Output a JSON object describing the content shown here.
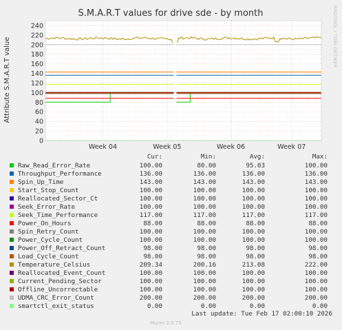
{
  "chart_data": {
    "type": "line",
    "title": "S.M.A.R.T values for drive sde - by month",
    "ylabel": "Attribute S.M.A.R.T value",
    "xlabel": "",
    "ylim": [
      0,
      250
    ],
    "yticks": [
      "0",
      "20",
      "40",
      "60",
      "80",
      "100",
      "120",
      "140",
      "160",
      "180",
      "200",
      "220",
      "240"
    ],
    "xticks": [
      {
        "label": "Week 04",
        "t": 0.248
      },
      {
        "label": "Week 05",
        "t": 0.481
      },
      {
        "label": "Week 06",
        "t": 0.712
      },
      {
        "label": "Week 07",
        "t": 0.932
      }
    ],
    "gap": [
      0.465,
      0.475
    ],
    "grid": true,
    "side_label": "RRDTOOL / TOBI OETIKER",
    "series": [
      {
        "name": "Raw_Read_Error_Rate",
        "color": "#00cc00",
        "cur": "100.00",
        "min": "80.00",
        "avg": "95.03",
        "max": "100.00",
        "segments": [
          [
            0.0,
            80
          ],
          [
            0.23,
            80
          ],
          [
            0.235,
            100
          ],
          [
            0.465,
            100
          ],
          [
            0.475,
            80
          ],
          [
            0.52,
            80
          ],
          [
            0.525,
            100
          ],
          [
            1.0,
            100
          ]
        ]
      },
      {
        "name": "Throughput_Performance",
        "color": "#0066b3",
        "cur": "136.00",
        "min": "136.00",
        "avg": "136.00",
        "max": "136.00",
        "constant": 136
      },
      {
        "name": "Spin_Up_Time",
        "color": "#ff8000",
        "cur": "143.00",
        "min": "143.00",
        "avg": "143.00",
        "max": "143.00",
        "constant": 143
      },
      {
        "name": "Start_Stop_Count",
        "color": "#ffcc00",
        "cur": "100.00",
        "min": "100.00",
        "avg": "100.00",
        "max": "100.00",
        "constant": 100
      },
      {
        "name": "Reallocated_Sector_Ct",
        "color": "#330099",
        "cur": "100.00",
        "min": "100.00",
        "avg": "100.00",
        "max": "100.00",
        "constant": 100
      },
      {
        "name": "Seek_Error_Rate",
        "color": "#990099",
        "cur": "100.00",
        "min": "100.00",
        "avg": "100.00",
        "max": "100.00",
        "constant": 100
      },
      {
        "name": "Seek_Time_Performance",
        "color": "#ccff00",
        "cur": "117.00",
        "min": "117.00",
        "avg": "117.00",
        "max": "117.00",
        "constant": 117
      },
      {
        "name": "Power_On_Hours",
        "color": "#ff0000",
        "cur": "88.00",
        "min": "88.00",
        "avg": "88.00",
        "max": "88.00",
        "constant": 88
      },
      {
        "name": "Spin_Retry_Count",
        "color": "#808080",
        "cur": "100.00",
        "min": "100.00",
        "avg": "100.00",
        "max": "100.00",
        "constant": 100
      },
      {
        "name": "Power_Cycle_Count",
        "color": "#008f00",
        "cur": "100.00",
        "min": "100.00",
        "avg": "100.00",
        "max": "100.00",
        "constant": 100
      },
      {
        "name": "Power_Off_Retract_Count",
        "color": "#00487d",
        "cur": "98.00",
        "min": "98.00",
        "avg": "98.00",
        "max": "98.00",
        "constant": 98
      },
      {
        "name": "Load_Cycle_Count",
        "color": "#b35a00",
        "cur": "98.00",
        "min": "98.00",
        "avg": "98.00",
        "max": "98.00",
        "constant": 98
      },
      {
        "name": "Temperature_Celsius",
        "color": "#b38f00",
        "cur": "209.34",
        "min": "200.16",
        "avg": "213.08",
        "max": "222.00",
        "wavy": true,
        "base": 213
      },
      {
        "name": "Reallocated_Event_Count",
        "color": "#6b006b",
        "cur": "100.00",
        "min": "100.00",
        "avg": "100.00",
        "max": "100.00",
        "constant": 100
      },
      {
        "name": "Current_Pending_Sector",
        "color": "#8fb300",
        "cur": "100.00",
        "min": "100.00",
        "avg": "100.00",
        "max": "100.00",
        "constant": 100
      },
      {
        "name": "Offline_Uncorrectable",
        "color": "#b30000",
        "cur": "100.00",
        "min": "100.00",
        "avg": "100.00",
        "max": "100.00",
        "constant": 100
      },
      {
        "name": "UDMA_CRC_Error_Count",
        "color": "#bebebe",
        "cur": "200.00",
        "min": "200.00",
        "avg": "200.00",
        "max": "200.00",
        "constant": 200
      },
      {
        "name": "smartctl_exit_status",
        "color": "#80ff80",
        "cur": "0.00",
        "min": "0.00",
        "avg": "0.00",
        "max": "0.00",
        "constant": 0
      }
    ]
  },
  "legend_header": {
    "cur": "Cur:",
    "min": "Min:",
    "avg": "Avg:",
    "max": "Max:"
  },
  "last_update": "Last update: Tue Feb 17 02:00:10 2026",
  "footer": "Munin 2.0.75"
}
